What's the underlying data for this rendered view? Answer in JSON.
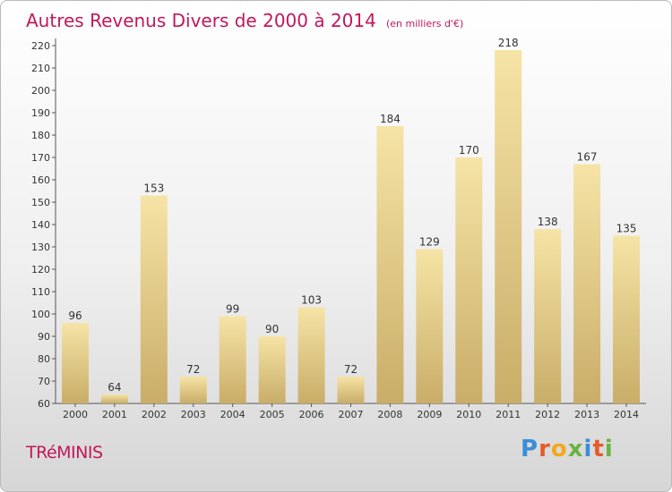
{
  "chart_data": {
    "type": "bar",
    "title": "Autres Revenus Divers de 2000 à 2014",
    "unit": "(en milliers d'€)",
    "categories": [
      "2000",
      "2001",
      "2002",
      "2003",
      "2004",
      "2005",
      "2006",
      "2007",
      "2008",
      "2009",
      "2010",
      "2011",
      "2012",
      "2013",
      "2014"
    ],
    "values": [
      96,
      64,
      153,
      72,
      99,
      90,
      103,
      72,
      184,
      129,
      170,
      218,
      138,
      167,
      135
    ],
    "ylim": [
      60,
      220
    ],
    "yticks": [
      60,
      70,
      80,
      90,
      100,
      110,
      120,
      130,
      140,
      150,
      160,
      170,
      180,
      190,
      200,
      210,
      220
    ],
    "grid": false,
    "bar_color_light": "#f6e4a6",
    "bar_color_dark": "#c9ad68"
  },
  "location": "TRéMINIS",
  "logo": {
    "letters": [
      "P",
      "r",
      "o",
      "x",
      "i",
      "t",
      "i"
    ],
    "colors": [
      "#3a8ed8",
      "#e35d2c",
      "#f2a81d",
      "#6bb344",
      "#3a8ed8",
      "#e35d2c",
      "#6bb344"
    ]
  }
}
